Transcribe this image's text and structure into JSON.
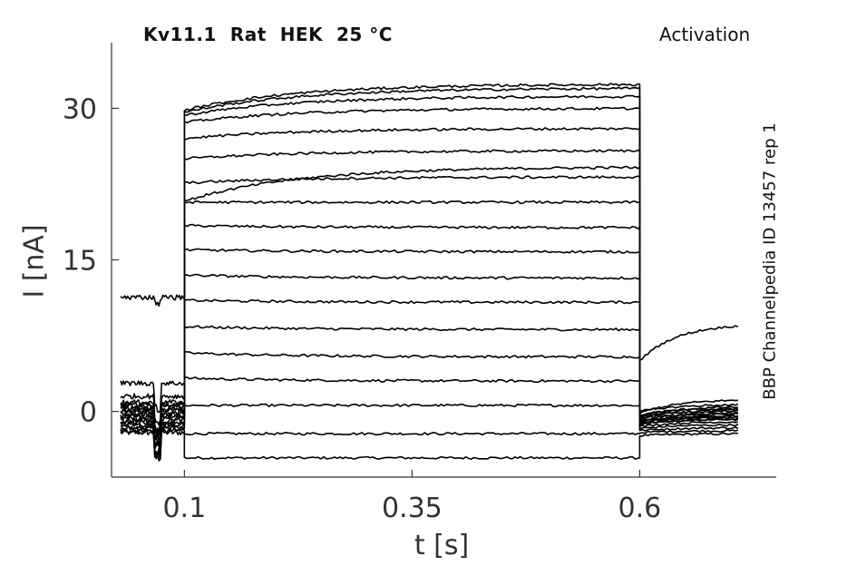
{
  "chart_data": {
    "type": "line",
    "title": "Kv11.1  Rat  HEK  25 °C",
    "subtitle": "Activation",
    "side_label": "BBP Channelpedia ID 13457 rep 1",
    "xlabel": "t [s]",
    "ylabel": "I [nA]",
    "xlim": [
      0.02,
      0.75
    ],
    "ylim": [
      -6.5,
      36.5
    ],
    "xticks": [
      0.1,
      0.35,
      0.6
    ],
    "xtick_labels": [
      "0.1",
      "0.35",
      "0.6"
    ],
    "yticks": [
      0,
      15,
      30
    ],
    "ytick_labels": [
      "0",
      "15",
      "30"
    ],
    "pulse": {
      "start": 0.1,
      "end": 0.6
    },
    "series": [
      {
        "pre": -2.1,
        "step_start": -4.6,
        "step_end": -4.6,
        "tail_start": -2.4,
        "tail_end": -2.2
      },
      {
        "pre": -1.9,
        "step_start": -2.2,
        "step_end": -2.2,
        "tail_start": -2.1,
        "tail_end": -1.9
      },
      {
        "pre": -1.7,
        "step_start": 0.6,
        "step_end": 0.6,
        "tail_start": -1.9,
        "tail_end": -1.6
      },
      {
        "pre": -1.5,
        "step_start": 3.3,
        "step_end": 3.0,
        "tail_start": -1.7,
        "tail_end": -1.3
      },
      {
        "pre": -1.3,
        "step_start": 5.8,
        "step_end": 5.4,
        "tail_start": -1.5,
        "tail_end": -1.0
      },
      {
        "pre": -1.1,
        "step_start": 8.4,
        "step_end": 8.1,
        "tail_start": -1.3,
        "tail_end": -0.7
      },
      {
        "pre": -0.9,
        "step_start": 11.0,
        "step_end": 10.8,
        "tail_start": -1.1,
        "tail_end": -0.4
      },
      {
        "pre": -0.7,
        "step_start": 13.5,
        "step_end": 13.2,
        "tail_start": -0.9,
        "tail_end": -0.1
      },
      {
        "pre": -0.5,
        "step_start": 16.0,
        "step_end": 15.8,
        "tail_start": -0.7,
        "tail_end": 0.2
      },
      {
        "pre": -0.3,
        "step_start": 18.4,
        "step_end": 18.2,
        "tail_start": -0.5,
        "tail_end": 0.5
      },
      {
        "pre": -0.1,
        "step_start": 20.7,
        "step_end": 20.7,
        "tail_start": -0.2,
        "tail_end": 1.2
      },
      {
        "pre": 1.5,
        "step_start": 20.8,
        "step_end": 24.2,
        "tail_start": 5.0,
        "tail_end": 8.7
      },
      {
        "pre": 0.1,
        "step_start": 22.6,
        "step_end": 23.2,
        "tail_start": 0.0,
        "tail_end": 0.7
      },
      {
        "pre": 0.3,
        "step_start": 25.0,
        "step_end": 25.8,
        "tail_start": -0.3,
        "tail_end": 0.3
      },
      {
        "pre": 0.5,
        "step_start": 27.0,
        "step_end": 28.0,
        "tail_start": -0.5,
        "tail_end": 0.1
      },
      {
        "pre": 0.7,
        "step_start": 28.6,
        "step_end": 30.0,
        "tail_start": -0.7,
        "tail_end": -0.2
      },
      {
        "pre": 0.9,
        "step_start": 29.3,
        "step_end": 31.2,
        "tail_start": -0.9,
        "tail_end": -0.4
      },
      {
        "pre": 2.8,
        "step_start": 29.6,
        "step_end": 32.0,
        "tail_start": -1.0,
        "tail_end": -0.6
      },
      {
        "pre": 11.3,
        "step_start": 29.8,
        "step_end": 32.4,
        "tail_start": -1.2,
        "tail_end": -0.8
      }
    ],
    "grid": false,
    "legend": "none"
  }
}
